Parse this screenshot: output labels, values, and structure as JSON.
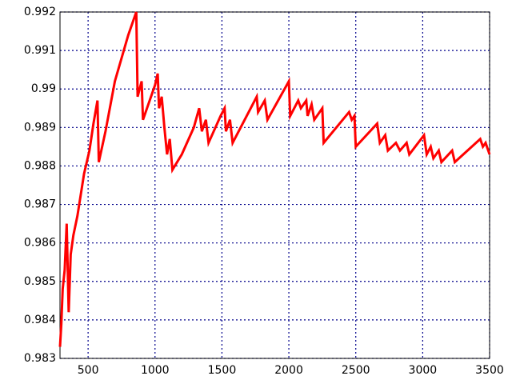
{
  "chart_data": {
    "type": "line",
    "color": "#ff0000",
    "grid": true,
    "x": [
      290,
      300,
      310,
      325,
      340,
      355,
      370,
      390,
      420,
      470,
      510,
      540,
      570,
      580,
      630,
      700,
      800,
      860,
      870,
      900,
      910,
      1000,
      1020,
      1030,
      1050,
      1070,
      1090,
      1110,
      1130,
      1200,
      1290,
      1330,
      1350,
      1380,
      1400,
      1490,
      1520,
      1530,
      1560,
      1580,
      1760,
      1770,
      1820,
      1840,
      2000,
      2010,
      2070,
      2090,
      2130,
      2140,
      2170,
      2190,
      2250,
      2260,
      2450,
      2470,
      2490,
      2500,
      2660,
      2680,
      2720,
      2740,
      2800,
      2830,
      2880,
      2900,
      3010,
      3030,
      3060,
      3080,
      3120,
      3140,
      3220,
      3240,
      3430,
      3450,
      3470,
      3500
    ],
    "values": [
      0.9833,
      0.9839,
      0.9848,
      0.9853,
      0.9865,
      0.9842,
      0.9857,
      0.9862,
      0.9867,
      0.9878,
      0.9884,
      0.9891,
      0.9897,
      0.9881,
      0.9889,
      0.9902,
      0.9914,
      0.992,
      0.9898,
      0.9902,
      0.9892,
      0.9901,
      0.9904,
      0.9895,
      0.9898,
      0.989,
      0.9883,
      0.9887,
      0.9879,
      0.9883,
      0.989,
      0.9895,
      0.9889,
      0.9892,
      0.9886,
      0.9893,
      0.9895,
      0.9889,
      0.9892,
      0.9886,
      0.9898,
      0.9894,
      0.9897,
      0.9892,
      0.9902,
      0.9893,
      0.9897,
      0.9895,
      0.9897,
      0.9893,
      0.9896,
      0.9892,
      0.9895,
      0.9886,
      0.9894,
      0.9892,
      0.9893,
      0.9885,
      0.9891,
      0.9886,
      0.9888,
      0.9884,
      0.9886,
      0.9884,
      0.9886,
      0.9883,
      0.9888,
      0.9883,
      0.9885,
      0.9882,
      0.9884,
      0.9881,
      0.9884,
      0.9881,
      0.9887,
      0.9885,
      0.9886,
      0.9883
    ],
    "xlim": [
      290,
      3500
    ],
    "xticks": [
      500,
      1000,
      1500,
      2000,
      2500,
      3000,
      3500
    ],
    "ylim": [
      0.983,
      0.992
    ],
    "yticks": [
      0.983,
      0.984,
      0.985,
      0.986,
      0.987,
      0.988,
      0.989,
      0.99,
      0.991,
      0.992
    ]
  }
}
